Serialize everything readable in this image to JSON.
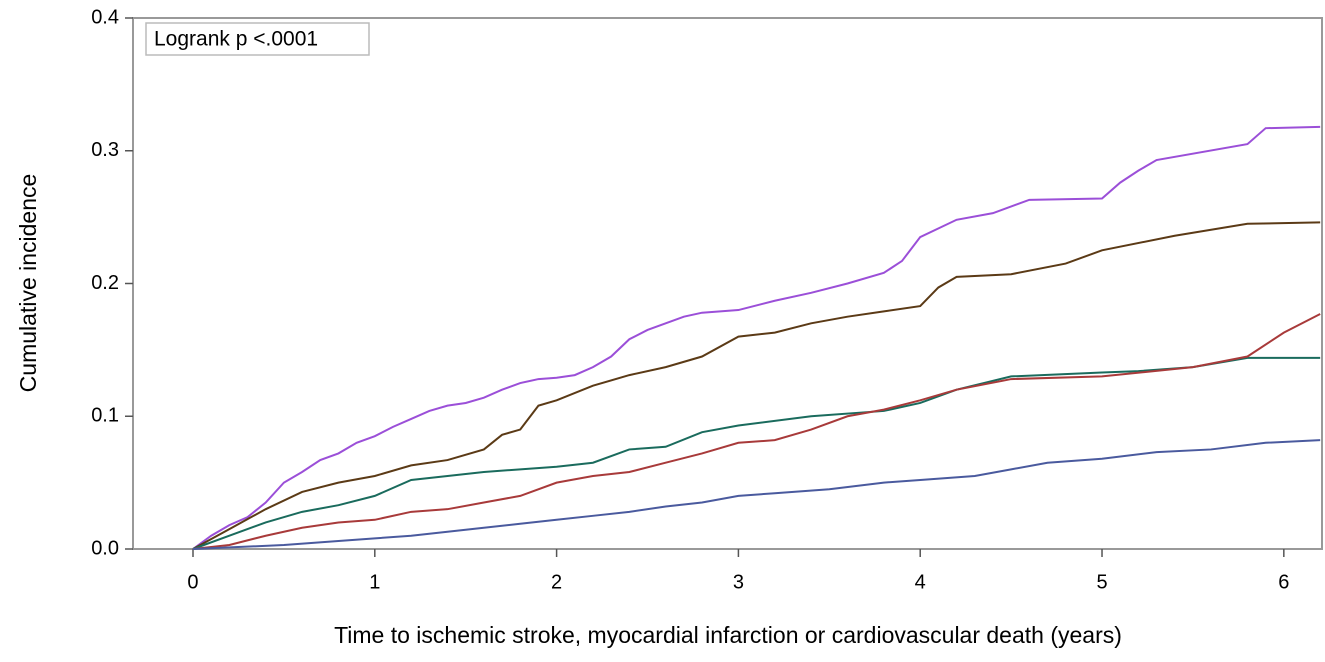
{
  "chart_data": {
    "type": "line",
    "annotation": "Logrank p <.0001",
    "xlabel": "Time to ischemic stroke, myocardial infarction or cardiovascular death (years)",
    "ylabel": "Cumulative incidence",
    "xlim": [
      -0.33,
      6.21
    ],
    "xticks": [
      0,
      1,
      2,
      3,
      4,
      5,
      6
    ],
    "ylim": [
      0,
      0.4
    ],
    "yticks": [
      {
        "value": 0,
        "label": "0.0"
      },
      0.1,
      0.2,
      0.3,
      0.4
    ],
    "grid": false,
    "series": [
      {
        "color": "#9b4fd8",
        "x": [
          0,
          0.1,
          0.2,
          0.3,
          0.4,
          0.5,
          0.6,
          0.7,
          0.8,
          0.9,
          1.0,
          1.1,
          1.2,
          1.3,
          1.4,
          1.5,
          1.6,
          1.7,
          1.8,
          1.9,
          2.0,
          2.1,
          2.2,
          2.3,
          2.4,
          2.5,
          2.6,
          2.7,
          2.8,
          3.0,
          3.2,
          3.4,
          3.6,
          3.8,
          3.9,
          4.0,
          4.2,
          4.4,
          4.6,
          5.0,
          5.1,
          5.2,
          5.3,
          5.8,
          5.9,
          6.2
        ],
        "values": [
          0,
          0.01,
          0.018,
          0.024,
          0.035,
          0.05,
          0.058,
          0.067,
          0.072,
          0.08,
          0.085,
          0.092,
          0.098,
          0.104,
          0.108,
          0.11,
          0.114,
          0.12,
          0.125,
          0.128,
          0.129,
          0.131,
          0.137,
          0.145,
          0.158,
          0.165,
          0.17,
          0.175,
          0.178,
          0.18,
          0.187,
          0.193,
          0.2,
          0.208,
          0.217,
          0.235,
          0.248,
          0.253,
          0.263,
          0.264,
          0.276,
          0.285,
          0.293,
          0.305,
          0.317,
          0.318
        ]
      },
      {
        "color": "#5b3a16",
        "x": [
          0,
          0.2,
          0.4,
          0.6,
          0.8,
          1.0,
          1.2,
          1.4,
          1.6,
          1.7,
          1.8,
          1.9,
          2.0,
          2.2,
          2.4,
          2.6,
          2.8,
          3.0,
          3.2,
          3.4,
          3.6,
          3.8,
          4.0,
          4.1,
          4.2,
          4.5,
          4.8,
          5.0,
          5.4,
          5.8,
          6.2
        ],
        "values": [
          0,
          0.015,
          0.03,
          0.043,
          0.05,
          0.055,
          0.063,
          0.067,
          0.075,
          0.086,
          0.09,
          0.108,
          0.112,
          0.123,
          0.131,
          0.137,
          0.145,
          0.16,
          0.163,
          0.17,
          0.175,
          0.179,
          0.183,
          0.197,
          0.205,
          0.207,
          0.215,
          0.225,
          0.236,
          0.245,
          0.246
        ]
      },
      {
        "color": "#1a6b5d",
        "x": [
          0,
          0.2,
          0.4,
          0.6,
          0.8,
          1.0,
          1.2,
          1.4,
          1.6,
          1.8,
          2.0,
          2.2,
          2.4,
          2.6,
          2.8,
          3.0,
          3.4,
          3.8,
          4.0,
          4.2,
          4.5,
          5.0,
          5.2,
          5.5,
          5.8,
          6.2
        ],
        "values": [
          0,
          0.01,
          0.02,
          0.028,
          0.033,
          0.04,
          0.052,
          0.055,
          0.058,
          0.06,
          0.062,
          0.065,
          0.075,
          0.077,
          0.088,
          0.093,
          0.1,
          0.104,
          0.11,
          0.12,
          0.13,
          0.133,
          0.134,
          0.137,
          0.144,
          0.144
        ]
      },
      {
        "color": "#a83a3a",
        "x": [
          0,
          0.2,
          0.4,
          0.6,
          0.8,
          1.0,
          1.2,
          1.4,
          1.6,
          1.8,
          2.0,
          2.2,
          2.4,
          2.6,
          2.8,
          3.0,
          3.2,
          3.4,
          3.6,
          3.8,
          4.0,
          4.2,
          4.5,
          5.0,
          5.5,
          5.8,
          6.0,
          6.2
        ],
        "values": [
          0,
          0.003,
          0.01,
          0.016,
          0.02,
          0.022,
          0.028,
          0.03,
          0.035,
          0.04,
          0.05,
          0.055,
          0.058,
          0.065,
          0.072,
          0.08,
          0.082,
          0.09,
          0.1,
          0.105,
          0.112,
          0.12,
          0.128,
          0.13,
          0.137,
          0.145,
          0.163,
          0.177
        ]
      },
      {
        "color": "#4a5a9e",
        "x": [
          0,
          0.5,
          0.8,
          1.0,
          1.2,
          1.4,
          1.6,
          1.8,
          2.0,
          2.2,
          2.4,
          2.6,
          2.8,
          3.0,
          3.2,
          3.5,
          3.8,
          4.0,
          4.3,
          4.5,
          4.7,
          5.0,
          5.3,
          5.6,
          5.9,
          6.2
        ],
        "values": [
          0,
          0.003,
          0.006,
          0.008,
          0.01,
          0.013,
          0.016,
          0.019,
          0.022,
          0.025,
          0.028,
          0.032,
          0.035,
          0.04,
          0.042,
          0.045,
          0.05,
          0.052,
          0.055,
          0.06,
          0.065,
          0.068,
          0.073,
          0.075,
          0.08,
          0.082
        ]
      }
    ]
  }
}
